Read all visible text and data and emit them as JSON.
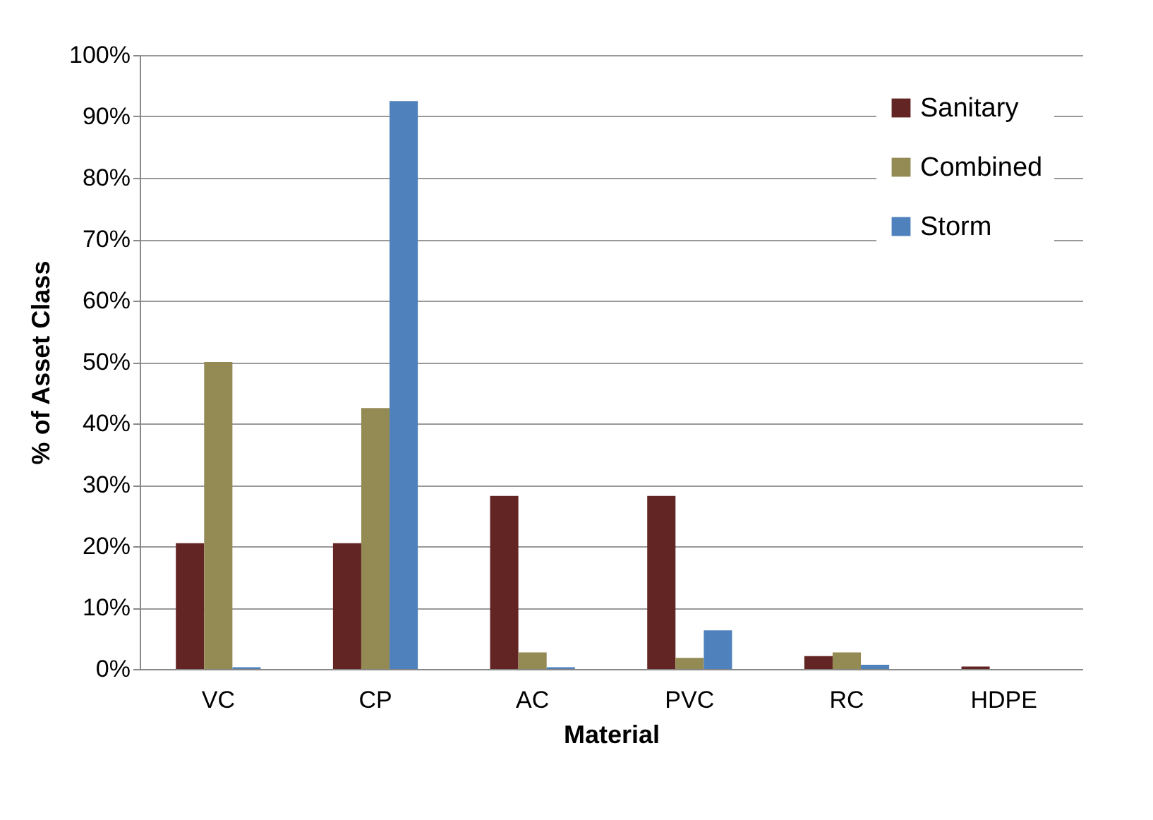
{
  "chart_data": {
    "type": "bar",
    "xlabel": "Material",
    "ylabel": "% of Asset Class",
    "categories": [
      "VC",
      "CP",
      "AC",
      "PVC",
      "RC",
      "HDPE"
    ],
    "series": [
      {
        "name": "Sanitary",
        "color": "#632523",
        "values": [
          20.5,
          20.5,
          28.2,
          28.2,
          2.1,
          0.4
        ]
      },
      {
        "name": "Combined",
        "color": "#948a54",
        "values": [
          50,
          42.5,
          2.7,
          1.8,
          2.7,
          0
        ]
      },
      {
        "name": "Storm",
        "color": "#4f81bd",
        "values": [
          0.3,
          92.5,
          0.3,
          6.3,
          0.7,
          0
        ]
      }
    ],
    "ylim": [
      0,
      100
    ],
    "yticks": [
      {
        "value": 0,
        "label": "0%"
      },
      {
        "value": 10,
        "label": "10%"
      },
      {
        "value": 20,
        "label": "20%"
      },
      {
        "value": 30,
        "label": "30%"
      },
      {
        "value": 40,
        "label": "40%"
      },
      {
        "value": 50,
        "label": "50%"
      },
      {
        "value": 60,
        "label": "60%"
      },
      {
        "value": 70,
        "label": "70%"
      },
      {
        "value": 80,
        "label": "80%"
      },
      {
        "value": 90,
        "label": "90%"
      },
      {
        "value": 100,
        "label": "100%"
      }
    ],
    "grid": "y",
    "legend": "top right"
  }
}
